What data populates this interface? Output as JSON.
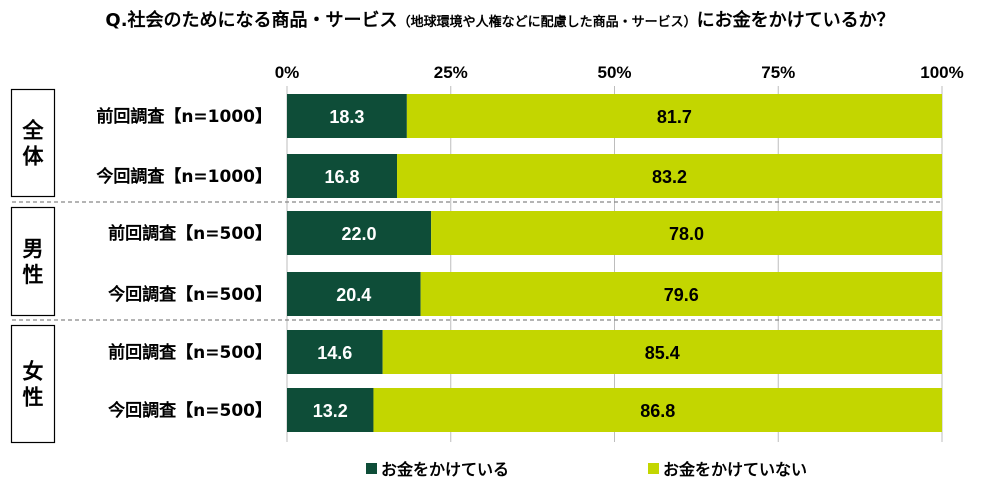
{
  "chart_data": {
    "type": "bar",
    "orientation": "horizontal",
    "stacked": true,
    "title": "Q.社会のためになる商品・サービス",
    "title_note": "（地球環境や人権などに配慮した商品・サービス）",
    "title_suffix": "にお金をかけているか？",
    "xlim": [
      0,
      100
    ],
    "ticks": [
      "0%",
      "25%",
      "50%",
      "75%",
      "100%"
    ],
    "groups": [
      {
        "name": "全体",
        "rows": [
          {
            "label": "前回調査【n=1000】",
            "values": [
              18.3,
              81.7
            ]
          },
          {
            "label": "今回調査【n=1000】",
            "values": [
              16.8,
              83.2
            ]
          }
        ]
      },
      {
        "name": "男性",
        "rows": [
          {
            "label": "前回調査【n=500】",
            "values": [
              22.0,
              78.0
            ]
          },
          {
            "label": "今回調査【n=500】",
            "values": [
              20.4,
              79.6
            ]
          }
        ]
      },
      {
        "name": "女性",
        "rows": [
          {
            "label": "前回調査【n=500】",
            "values": [
              14.6,
              85.4
            ]
          },
          {
            "label": "今回調査【n=500】",
            "values": [
              13.2,
              86.8
            ]
          }
        ]
      }
    ],
    "series": [
      {
        "name": "お金をかけている",
        "color": "#0e4d38",
        "text_color": "#ffffff"
      },
      {
        "name": "お金をかけていない",
        "color": "#c3d600",
        "text_color": "#000000"
      }
    ]
  }
}
